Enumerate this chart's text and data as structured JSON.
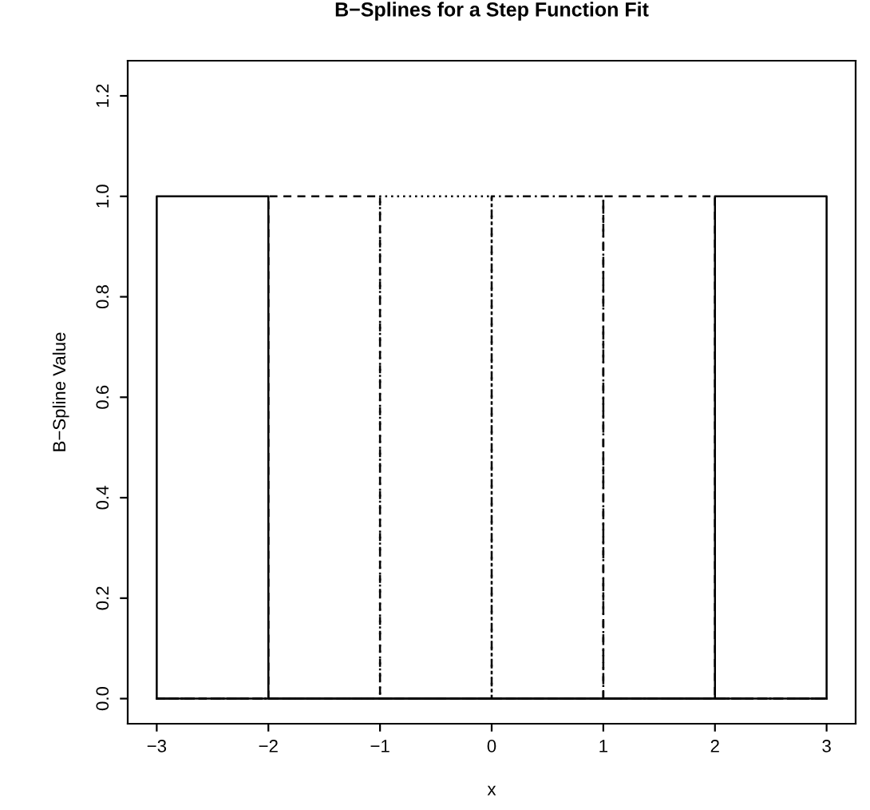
{
  "chart_data": {
    "type": "line",
    "title": "B−Splines for a Step Function Fit",
    "xlabel": "x",
    "ylabel": "B−Spline Value",
    "series": [
      {
        "color": "#000000",
        "line_style": "solid",
        "x": [
          -3,
          -3,
          -2,
          -2,
          3
        ],
        "values": [
          0,
          1,
          1,
          0,
          0
        ]
      },
      {
        "color": "#000000",
        "line_style": "dashed",
        "x": [
          -3,
          -2,
          -2,
          -1,
          -1,
          3
        ],
        "values": [
          0,
          0,
          1,
          1,
          0,
          0
        ]
      },
      {
        "color": "#000000",
        "line_style": "dotted",
        "x": [
          -3,
          -1,
          -1,
          0,
          0,
          3
        ],
        "values": [
          0,
          0,
          1,
          1,
          0,
          0
        ]
      },
      {
        "color": "#000000",
        "line_style": "dashdot",
        "x": [
          -3,
          0,
          0,
          1,
          1,
          3
        ],
        "values": [
          0,
          0,
          1,
          1,
          0,
          0
        ]
      },
      {
        "color": "#000000",
        "line_style": "dashed",
        "x": [
          -3,
          1,
          1,
          2,
          2,
          3
        ],
        "values": [
          0,
          0,
          1,
          1,
          0,
          0
        ]
      },
      {
        "color": "#000000",
        "line_style": "solid",
        "x": [
          -3,
          2,
          2,
          3,
          3
        ],
        "values": [
          0,
          0,
          1,
          1,
          0
        ]
      }
    ],
    "xlim": [
      -3.26,
      3.26
    ],
    "ylim": [
      -0.05,
      1.27
    ],
    "xticks": [
      -3,
      -2,
      -1,
      0,
      1,
      2,
      3
    ],
    "yticks": [
      {
        "value": 0,
        "label": "0.0"
      },
      0.2,
      0.4,
      0.6,
      0.8,
      {
        "value": 1,
        "label": "1.0"
      },
      1.2
    ],
    "grid": false,
    "legend": false,
    "marker": "none"
  }
}
